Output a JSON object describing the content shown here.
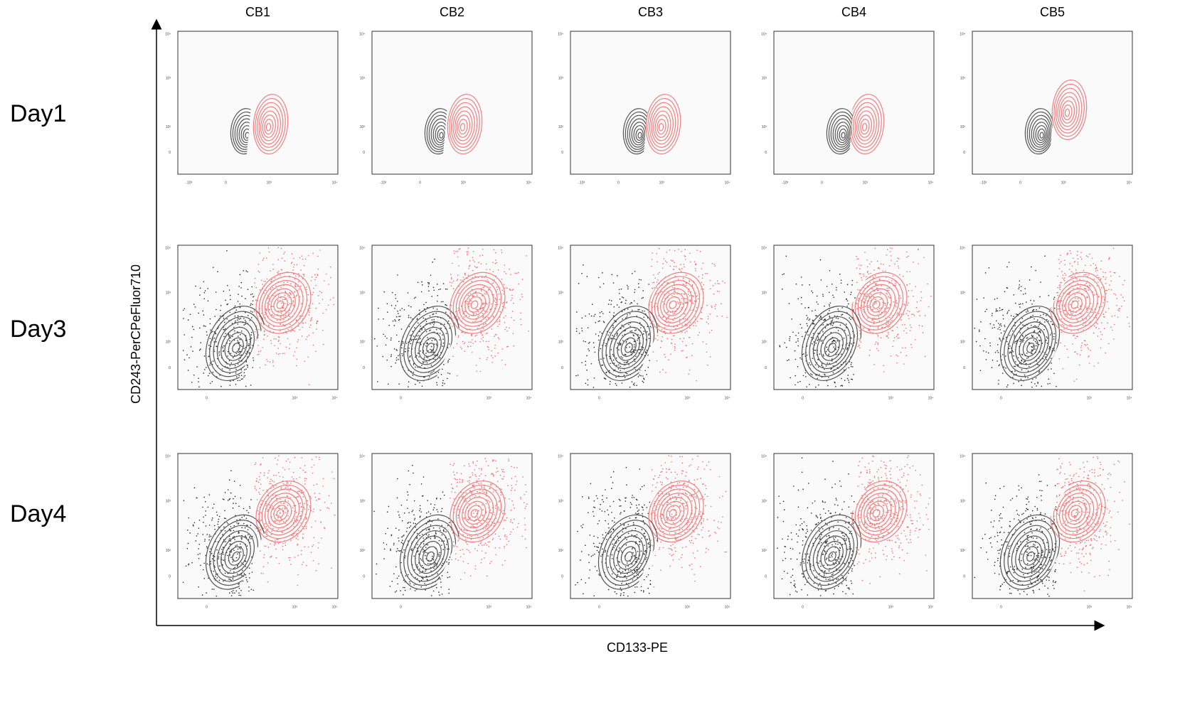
{
  "columns": [
    "CB1",
    "CB2",
    "CB3",
    "CB4",
    "CB5"
  ],
  "rows": [
    "Day1",
    "Day3",
    "Day4"
  ],
  "x_axis_label": "CD133-PE",
  "y_axis_label": "CD243-PerCPeFluor710",
  "day1_x_ticks": [
    "-10³",
    "0",
    "10³",
    "10⁴"
  ],
  "later_x_ticks": [
    "0",
    "10³",
    "10⁴"
  ],
  "y_ticks": [
    "10⁴",
    "10³",
    "10²",
    "0"
  ]
}
